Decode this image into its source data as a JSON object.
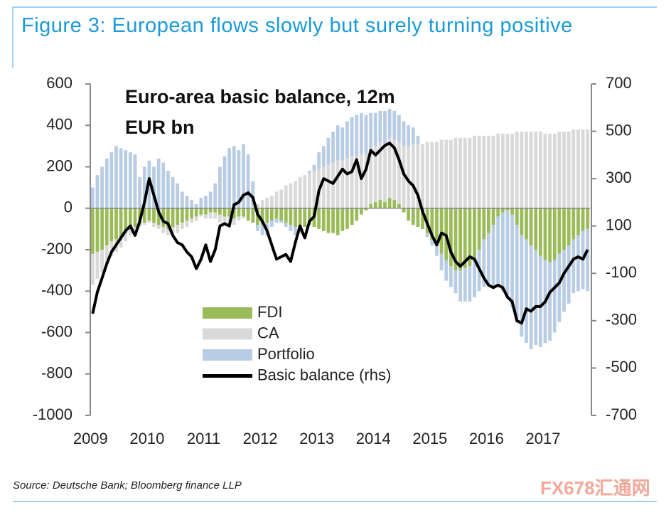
{
  "chart_data": {
    "type": "bar",
    "title": "Figure 3: European flows slowly but surely turning positive",
    "annotation": [
      "Euro-area basic balance, 12m",
      "EUR bn"
    ],
    "source": "Source: Deutsche Bank; Bloomberg finance LLP",
    "watermark": "FX678汇通网",
    "stacked": true,
    "categories": [
      "2009",
      null,
      null,
      null,
      null,
      null,
      null,
      null,
      null,
      null,
      null,
      null,
      "2010",
      null,
      null,
      null,
      null,
      null,
      null,
      null,
      null,
      null,
      null,
      null,
      "2011",
      null,
      null,
      null,
      null,
      null,
      null,
      null,
      null,
      null,
      null,
      null,
      "2012",
      null,
      null,
      null,
      null,
      null,
      null,
      null,
      null,
      null,
      null,
      null,
      "2013",
      null,
      null,
      null,
      null,
      null,
      null,
      null,
      null,
      null,
      null,
      null,
      "2014",
      null,
      null,
      null,
      null,
      null,
      null,
      null,
      null,
      null,
      null,
      null,
      "2015",
      null,
      null,
      null,
      null,
      null,
      null,
      null,
      null,
      null,
      null,
      null,
      "2016",
      null,
      null,
      null,
      null,
      null,
      null,
      null,
      null,
      null,
      null,
      null,
      "2017",
      null,
      null,
      null,
      null,
      null,
      null,
      null,
      null,
      null
    ],
    "series": [
      {
        "name": "FDI",
        "color": "#9bbb59",
        "values": [
          -220,
          -210,
          -200,
          -180,
          -160,
          -150,
          -140,
          -120,
          -100,
          -90,
          -80,
          -70,
          -60,
          -70,
          -80,
          -90,
          -100,
          -90,
          -80,
          -70,
          -60,
          -50,
          -40,
          -30,
          -30,
          -20,
          -20,
          -30,
          -40,
          -40,
          -50,
          -40,
          -40,
          -60,
          -70,
          -80,
          -80,
          -70,
          -60,
          -50,
          -60,
          -70,
          -80,
          -90,
          -100,
          -90,
          -80,
          -90,
          -100,
          -110,
          -120,
          -120,
          -130,
          -110,
          -100,
          -80,
          -60,
          -30,
          -10,
          20,
          30,
          40,
          30,
          50,
          40,
          20,
          -20,
          -60,
          -80,
          -90,
          -100,
          -120,
          -150,
          -180,
          -220,
          -250,
          -280,
          -300,
          -300,
          -290,
          -280,
          -250,
          -200,
          -150,
          -120,
          -80,
          -40,
          -20,
          -10,
          -30,
          -80,
          -130,
          -150,
          -180,
          -200,
          -230,
          -250,
          -260,
          -250,
          -220,
          -200,
          -180,
          -150,
          -130,
          -110,
          -100
        ]
      },
      {
        "name": "CA",
        "color": "#d9d9d9",
        "values": [
          -150,
          -130,
          -110,
          -90,
          -70,
          -60,
          -50,
          -40,
          -30,
          -20,
          -10,
          -10,
          -10,
          -20,
          -20,
          -30,
          -30,
          -30,
          -40,
          -30,
          -30,
          -20,
          -20,
          -10,
          -20,
          -30,
          -30,
          -40,
          -40,
          -30,
          -30,
          -20,
          -10,
          0,
          10,
          20,
          40,
          50,
          60,
          80,
          90,
          110,
          120,
          130,
          150,
          160,
          170,
          180,
          190,
          200,
          210,
          220,
          230,
          230,
          240,
          250,
          250,
          260,
          260,
          270,
          270,
          280,
          280,
          290,
          290,
          300,
          300,
          300,
          310,
          310,
          310,
          320,
          320,
          320,
          330,
          330,
          330,
          340,
          340,
          340,
          340,
          350,
          350,
          350,
          350,
          350,
          360,
          360,
          360,
          360,
          370,
          370,
          370,
          370,
          370,
          370,
          360,
          360,
          360,
          370,
          370,
          370,
          380,
          380,
          380,
          380
        ]
      },
      {
        "name": "Portfolio",
        "color": "#b8cce4",
        "values": [
          100,
          160,
          200,
          240,
          270,
          300,
          290,
          280,
          270,
          260,
          150,
          200,
          230,
          200,
          240,
          220,
          180,
          150,
          120,
          80,
          60,
          40,
          20,
          50,
          60,
          80,
          120,
          200,
          250,
          290,
          300,
          280,
          310,
          260,
          120,
          -30,
          -50,
          -60,
          -30,
          -20,
          -10,
          -20,
          -30,
          -40,
          -20,
          0,
          10,
          30,
          80,
          100,
          130,
          150,
          170,
          160,
          180,
          190,
          200,
          200,
          190,
          170,
          160,
          150,
          160,
          140,
          140,
          130,
          120,
          100,
          80,
          40,
          0,
          -20,
          -30,
          -50,
          -80,
          -100,
          -100,
          -110,
          -150,
          -160,
          -170,
          -180,
          -200,
          -230,
          -250,
          -300,
          -330,
          -380,
          -420,
          -450,
          -470,
          -490,
          -500,
          -500,
          -460,
          -440,
          -400,
          -380,
          -350,
          -330,
          -300,
          -280,
          -260,
          -270,
          -280,
          -300
        ]
      },
      {
        "name": "Basic balance (rhs)",
        "color": "#000000",
        "type": "line",
        "axis": "y2",
        "values": [
          -270,
          -180,
          -120,
          -60,
          -10,
          20,
          50,
          80,
          100,
          60,
          120,
          200,
          300,
          230,
          160,
          120,
          110,
          60,
          30,
          20,
          -10,
          -30,
          -80,
          -40,
          20,
          -50,
          0,
          100,
          110,
          100,
          190,
          200,
          230,
          240,
          220,
          150,
          120,
          80,
          20,
          -40,
          -30,
          -20,
          -50,
          30,
          100,
          50,
          120,
          140,
          250,
          300,
          290,
          280,
          310,
          340,
          320,
          330,
          380,
          300,
          340,
          420,
          400,
          420,
          440,
          450,
          430,
          380,
          320,
          290,
          270,
          230,
          160,
          110,
          60,
          20,
          70,
          60,
          -10,
          -50,
          -70,
          -50,
          -30,
          -40,
          -80,
          -120,
          -150,
          -160,
          -150,
          -160,
          -200,
          -220,
          -300,
          -310,
          -250,
          -260,
          -240,
          -240,
          -220,
          -180,
          -160,
          -140,
          -100,
          -70,
          -40,
          -30,
          -40,
          0
        ]
      }
    ],
    "ylim": [
      -1000,
      600
    ],
    "yticks": [
      600,
      400,
      200,
      0,
      -200,
      -400,
      -600,
      -800,
      -1000
    ],
    "y2lim": [
      -700,
      700
    ],
    "y2ticks": [
      700,
      500,
      300,
      100,
      -100,
      -300,
      -500,
      -700
    ]
  }
}
